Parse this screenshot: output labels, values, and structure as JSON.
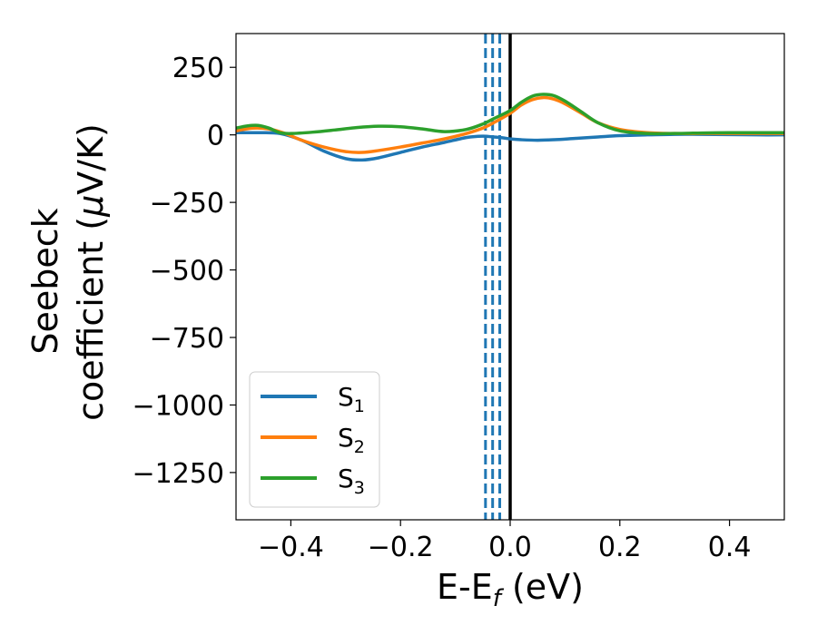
{
  "chart_data": {
    "type": "line",
    "title": "",
    "xlabel": "E-E",
    "xlabel_sub": "f",
    "xlabel_unit": " (eV)",
    "ylabel_line1": "Seebeck",
    "ylabel_line2": "coefficient  (",
    "ylabel_mu": "μ",
    "ylabel_unit": "V/K)",
    "xlim": [
      -0.5,
      0.5
    ],
    "ylim": [
      -1425,
      375
    ],
    "xticks": [
      -0.4,
      -0.2,
      0.0,
      0.2,
      0.4
    ],
    "xtick_labels": [
      "−0.4",
      "−0.2",
      "0.0",
      "0.2",
      "0.4"
    ],
    "yticks": [
      250,
      0,
      -250,
      -500,
      -750,
      -1000,
      -1250
    ],
    "ytick_labels": [
      "250",
      "0",
      "−250",
      "−500",
      "−750",
      "−1000",
      "−1250"
    ],
    "grid": false,
    "legend_position": "lower-left",
    "series": [
      {
        "name": "S",
        "sub": "1",
        "color": "#1f77b4",
        "x": [
          -0.5,
          -0.46,
          -0.42,
          -0.38,
          -0.34,
          -0.3,
          -0.27,
          -0.24,
          -0.2,
          -0.16,
          -0.12,
          -0.08,
          -0.05,
          -0.03,
          -0.01,
          0.0,
          0.02,
          0.05,
          0.08,
          0.12,
          0.16,
          0.2,
          0.25,
          0.3,
          0.35,
          0.4,
          0.45,
          0.5
        ],
        "y": [
          8,
          8,
          5,
          -20,
          -60,
          -88,
          -93,
          -85,
          -65,
          -45,
          -28,
          -10,
          -5,
          -8,
          -12,
          -15,
          -18,
          -20,
          -18,
          -13,
          -8,
          -3,
          0,
          2,
          2,
          1,
          0,
          0
        ]
      },
      {
        "name": "S",
        "sub": "2",
        "color": "#ff7f0e",
        "x": [
          -0.5,
          -0.47,
          -0.44,
          -0.41,
          -0.38,
          -0.34,
          -0.3,
          -0.27,
          -0.24,
          -0.2,
          -0.16,
          -0.12,
          -0.08,
          -0.05,
          -0.03,
          0.0,
          0.02,
          0.04,
          0.06,
          0.08,
          0.1,
          0.13,
          0.16,
          0.2,
          0.25,
          0.3,
          0.35,
          0.4,
          0.45,
          0.5
        ],
        "y": [
          15,
          25,
          22,
          5,
          -20,
          -45,
          -62,
          -65,
          -58,
          -45,
          -30,
          -15,
          5,
          25,
          45,
          80,
          110,
          130,
          138,
          132,
          115,
          80,
          45,
          20,
          8,
          5,
          5,
          5,
          5,
          5
        ]
      },
      {
        "name": "S",
        "sub": "3",
        "color": "#2ca02c",
        "x": [
          -0.5,
          -0.48,
          -0.46,
          -0.44,
          -0.42,
          -0.4,
          -0.36,
          -0.32,
          -0.28,
          -0.24,
          -0.2,
          -0.16,
          -0.12,
          -0.08,
          -0.05,
          -0.03,
          0.0,
          0.02,
          0.04,
          0.06,
          0.08,
          0.1,
          0.13,
          0.16,
          0.2,
          0.25,
          0.3,
          0.35,
          0.4,
          0.45,
          0.5
        ],
        "y": [
          25,
          33,
          35,
          25,
          8,
          5,
          10,
          18,
          27,
          32,
          30,
          22,
          12,
          20,
          40,
          60,
          90,
          120,
          143,
          150,
          145,
          125,
          85,
          45,
          15,
          5,
          5,
          7,
          8,
          8,
          8
        ]
      }
    ],
    "vertical_lines": [
      {
        "x": -0.045,
        "style": "dashed",
        "color": "#1f77b4"
      },
      {
        "x": -0.032,
        "style": "dashed",
        "color": "#1f77b4"
      },
      {
        "x": -0.019,
        "style": "dashed",
        "color": "#1f77b4"
      },
      {
        "x": 0.0,
        "style": "solid",
        "color": "#000000"
      }
    ]
  }
}
